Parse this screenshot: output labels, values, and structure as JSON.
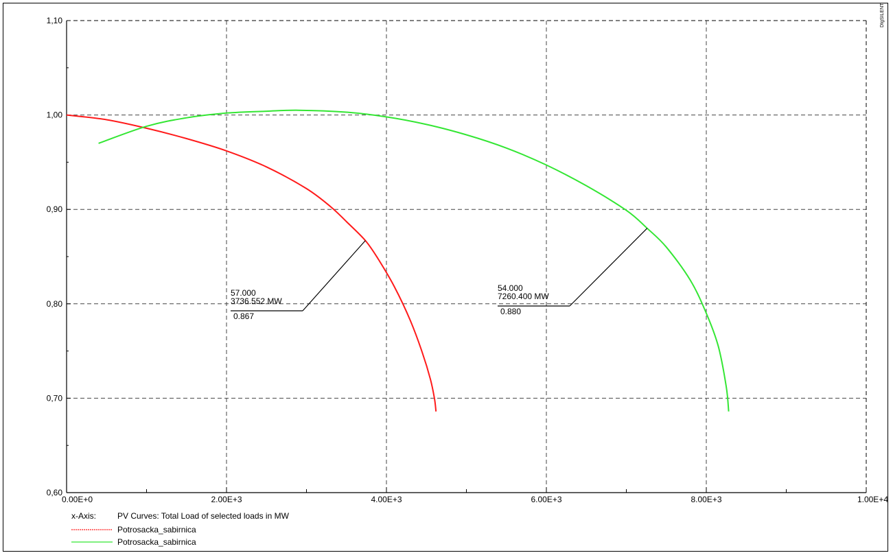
{
  "chart_data": {
    "type": "line",
    "xlim": [
      0,
      10000
    ],
    "ylim": [
      0.6,
      1.1
    ],
    "grid": true,
    "x_ticks": [
      {
        "value": 0,
        "label": "0.00E+0"
      },
      {
        "value": 2000,
        "label": "2.00E+3"
      },
      {
        "value": 4000,
        "label": "4.00E+3"
      },
      {
        "value": 6000,
        "label": "6.00E+3"
      },
      {
        "value": 8000,
        "label": "8.00E+3"
      },
      {
        "value": 10000,
        "label": "1.00E+4"
      }
    ],
    "y_ticks": [
      {
        "value": 0.6,
        "label": "0,60"
      },
      {
        "value": 0.7,
        "label": "0,70"
      },
      {
        "value": 0.8,
        "label": "0,80"
      },
      {
        "value": 0.9,
        "label": "0,90"
      },
      {
        "value": 1.0,
        "label": "1,00"
      },
      {
        "value": 1.1,
        "label": "1,10"
      }
    ],
    "x_axis_prefix": "x-Axis:",
    "x_axis_label": "PV Curves: Total Load of selected loads in MW",
    "legend_placement": "bottom-left",
    "series": [
      {
        "name": "Potrosacka_sabirnica",
        "color": "#ff1a1a",
        "x": [
          0,
          500,
          1000,
          1500,
          2000,
          2500,
          3000,
          3300,
          3500,
          3736.552,
          3900,
          4100,
          4300,
          4450,
          4550,
          4600,
          4620
        ],
        "y": [
          1.0,
          0.995,
          0.986,
          0.975,
          0.962,
          0.945,
          0.922,
          0.903,
          0.887,
          0.867,
          0.847,
          0.818,
          0.782,
          0.748,
          0.72,
          0.7,
          0.686
        ]
      },
      {
        "name": "Potrosacka_sabirnica",
        "color": "#33e633",
        "x": [
          400,
          1000,
          1500,
          2000,
          2500,
          2900,
          3500,
          4000,
          4500,
          5000,
          5500,
          6000,
          6500,
          7000,
          7260.4,
          7500,
          7800,
          8000,
          8150,
          8250,
          8280
        ],
        "y": [
          0.97,
          0.988,
          0.997,
          1.002,
          1.004,
          1.005,
          1.003,
          0.998,
          0.99,
          0.979,
          0.965,
          0.947,
          0.925,
          0.899,
          0.88,
          0.86,
          0.825,
          0.79,
          0.755,
          0.712,
          0.686
        ]
      }
    ],
    "annotations": [
      {
        "point_x": 3736.552,
        "point_y": 0.867,
        "lines": [
          "57.000",
          "3736.552 MW",
          "0.867"
        ]
      },
      {
        "point_x": 7260.4,
        "point_y": 0.88,
        "lines": [
          "54.000",
          "7260.400 MW",
          "0.880"
        ]
      }
    ]
  },
  "branding": "DIgSILENT"
}
